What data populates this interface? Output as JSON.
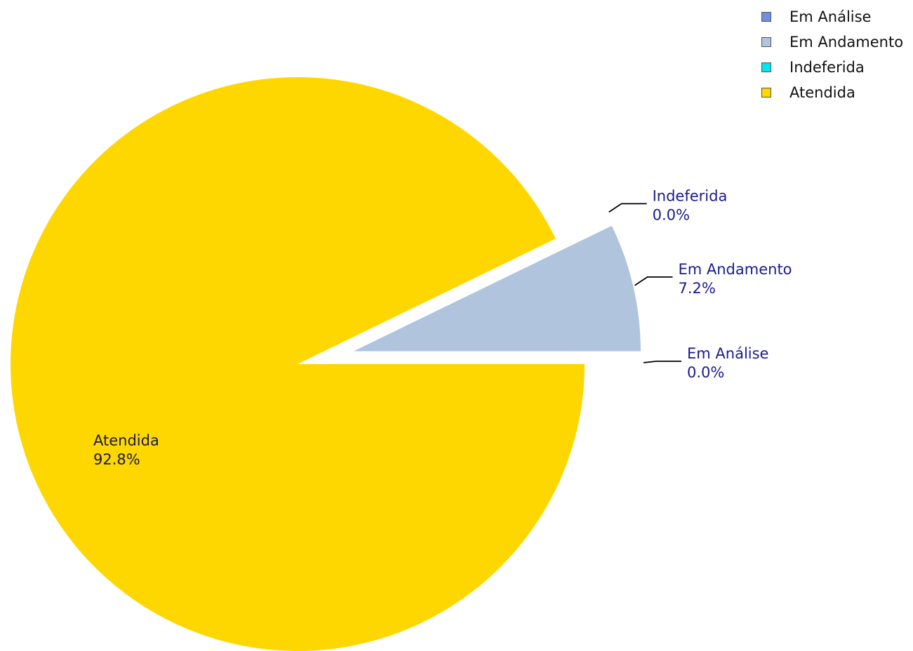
{
  "chart_data": {
    "type": "pie",
    "categories": [
      "Em Análise",
      "Em Andamento",
      "Indeferida",
      "Atendida"
    ],
    "values": [
      0.0,
      7.2,
      0.0,
      92.8
    ],
    "labels": [
      {
        "name": "Em Análise",
        "value": "0.0%"
      },
      {
        "name": "Em Andamento",
        "value": "7.2%"
      },
      {
        "name": "Indeferida",
        "value": "0.0%"
      },
      {
        "name": "Atendida",
        "value": "92.8%"
      }
    ],
    "colors": [
      "#6f8fe0",
      "#b0c4de",
      "#00e5ee",
      "#ffd700"
    ],
    "exploded_slices": [
      "Em Análise",
      "Em Andamento",
      "Indeferida"
    ],
    "legend": {
      "position": "top-right",
      "entries": [
        "Em Análise",
        "Em Andamento",
        "Indeferida",
        "Atendida"
      ]
    }
  }
}
